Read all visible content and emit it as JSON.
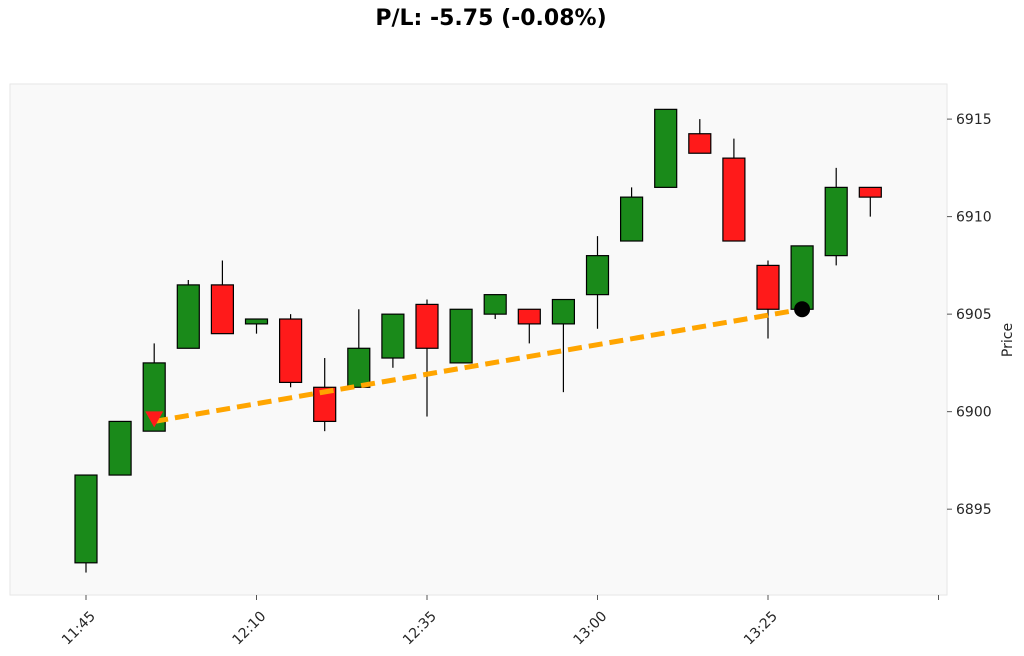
{
  "chart_data": {
    "type": "candlestick",
    "title": "P/L: -5.75 (-0.08%)",
    "ylabel": "Price",
    "xlabel": "",
    "ylim": [
      6890.6,
      6916.8
    ],
    "grid": false,
    "y_ticks": [
      6895,
      6900,
      6905,
      6910,
      6915
    ],
    "x_ticks": [
      {
        "label": "11:45",
        "index": 0
      },
      {
        "label": "12:10",
        "index": 5
      },
      {
        "label": "12:35",
        "index": 10
      },
      {
        "label": "13:00",
        "index": 15
      },
      {
        "label": "13:25",
        "index": 20
      }
    ],
    "x_tick_extra_index": 25,
    "candles": [
      {
        "o": 6892.25,
        "h": 6896.75,
        "l": 6891.75,
        "c": 6896.75
      },
      {
        "o": 6896.75,
        "h": 6899.5,
        "l": 6896.75,
        "c": 6899.5
      },
      {
        "o": 6899.0,
        "h": 6903.5,
        "l": 6899.0,
        "c": 6902.5
      },
      {
        "o": 6903.25,
        "h": 6906.75,
        "l": 6903.25,
        "c": 6906.5
      },
      {
        "o": 6906.5,
        "h": 6907.75,
        "l": 6904.0,
        "c": 6904.0
      },
      {
        "o": 6904.5,
        "h": 6904.75,
        "l": 6904.0,
        "c": 6904.75
      },
      {
        "o": 6904.75,
        "h": 6905.0,
        "l": 6901.25,
        "c": 6901.5
      },
      {
        "o": 6901.25,
        "h": 6902.75,
        "l": 6899.0,
        "c": 6899.5
      },
      {
        "o": 6901.25,
        "h": 6905.25,
        "l": 6901.25,
        "c": 6903.25
      },
      {
        "o": 6902.75,
        "h": 6905.0,
        "l": 6902.25,
        "c": 6905.0
      },
      {
        "o": 6905.5,
        "h": 6905.75,
        "l": 6899.75,
        "c": 6903.25
      },
      {
        "o": 6902.5,
        "h": 6905.25,
        "l": 6902.5,
        "c": 6905.25
      },
      {
        "o": 6905.0,
        "h": 6906.0,
        "l": 6904.75,
        "c": 6906.0
      },
      {
        "o": 6905.25,
        "h": 6905.25,
        "l": 6903.5,
        "c": 6904.5
      },
      {
        "o": 6904.5,
        "h": 6905.75,
        "l": 6901.0,
        "c": 6905.75
      },
      {
        "o": 6906.0,
        "h": 6909.0,
        "l": 6904.25,
        "c": 6908.0
      },
      {
        "o": 6908.75,
        "h": 6911.5,
        "l": 6908.75,
        "c": 6911.0
      },
      {
        "o": 6911.5,
        "h": 6915.5,
        "l": 6911.5,
        "c": 6915.5
      },
      {
        "o": 6914.25,
        "h": 6915.0,
        "l": 6913.25,
        "c": 6913.25
      },
      {
        "o": 6913.0,
        "h": 6914.0,
        "l": 6908.75,
        "c": 6908.75
      },
      {
        "o": 6907.5,
        "h": 6907.75,
        "l": 6903.75,
        "c": 6905.25
      },
      {
        "o": 6905.25,
        "h": 6908.5,
        "l": 6905.0,
        "c": 6908.5
      },
      {
        "o": 6908.0,
        "h": 6912.5,
        "l": 6907.5,
        "c": 6911.5
      },
      {
        "o": 6911.5,
        "h": 6911.5,
        "l": 6910.0,
        "c": 6911.0
      }
    ],
    "trade": {
      "entry": {
        "index": 2,
        "price": 6899.5,
        "marker": "red-triangle"
      },
      "exit": {
        "index": 21,
        "price": 6905.25,
        "marker": "black-circle"
      },
      "line_style": "dashed"
    },
    "colors": {
      "up": "#1a8a1a",
      "down": "#ff1a1a",
      "trade_line": "#ffa500",
      "plot_bg": "#f9f9f9"
    }
  }
}
